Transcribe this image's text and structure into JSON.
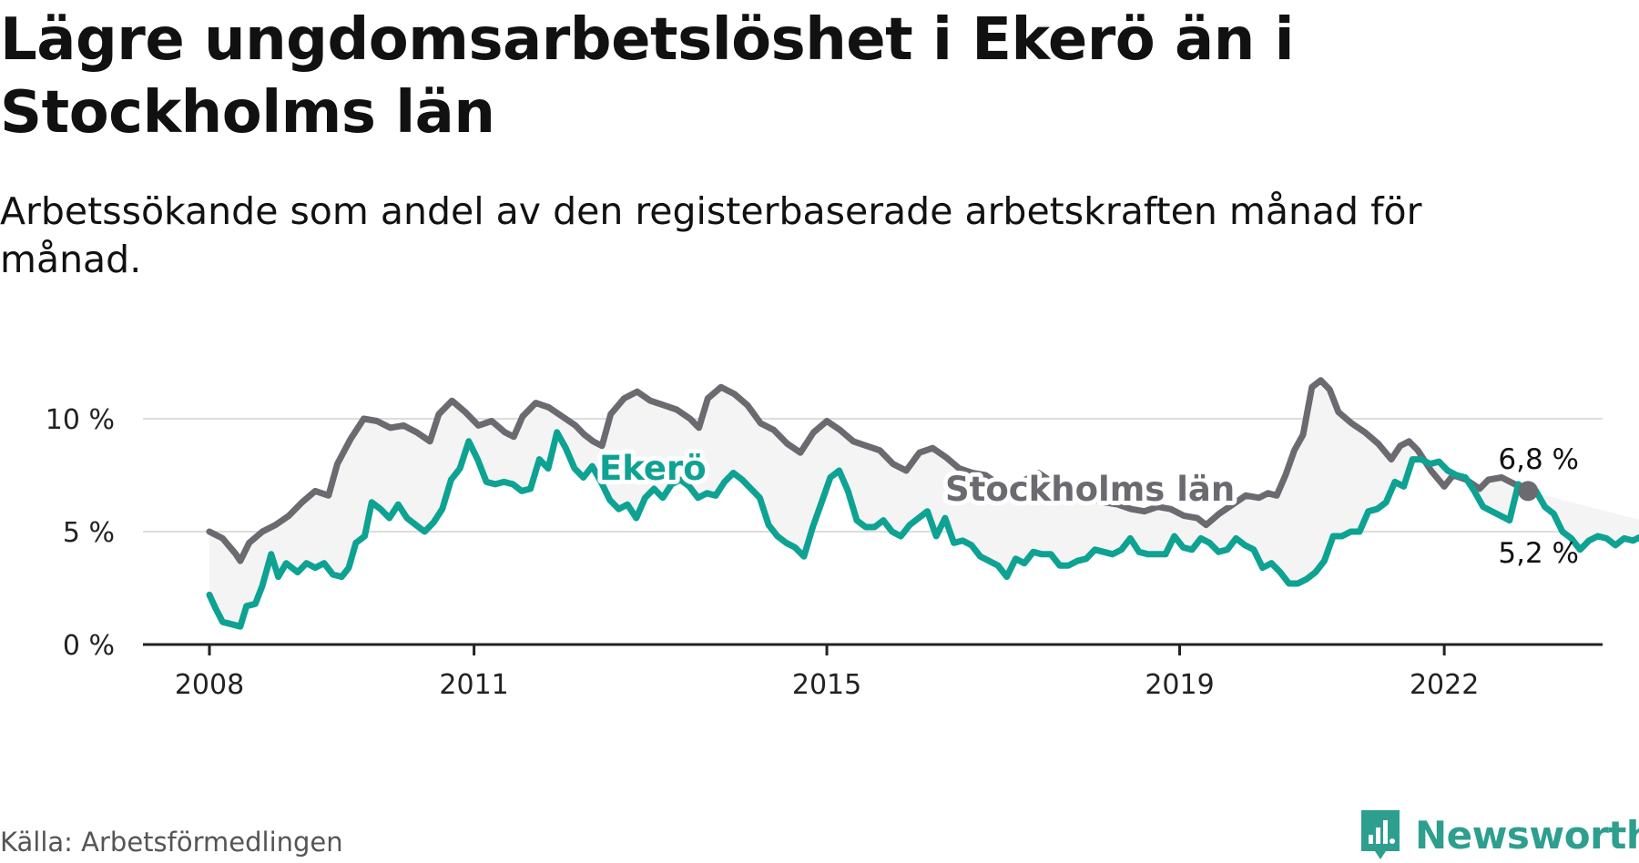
{
  "title": "Lägre ungdomsarbetslöshet i Ekerö än i Stockholms län",
  "subtitle": "Arbetssökande som andel av den registerbaserade arbetskraften månad för månad.",
  "source": "Källa: Arbetsförmedlingen",
  "brand": "Newsworthy",
  "colors": {
    "stockholm": "#6b6a70",
    "ekero": "#0ea293",
    "band": "#f4f4f4",
    "grid": "#dddddd",
    "axis": "#222222",
    "brand": "#2e9f8f"
  },
  "chart_data": {
    "type": "line",
    "title": "Lägre ungdomsarbetslöshet i Ekerö än i Stockholms län",
    "xlabel": "",
    "ylabel": "",
    "xlim": [
      2008.0,
      2023.0
    ],
    "ylim": [
      0,
      12
    ],
    "yticks": [
      0,
      5,
      10
    ],
    "ytick_labels": [
      "0 %",
      "5 %",
      "10 %"
    ],
    "xticks": [
      2008,
      2011,
      2015,
      2019,
      2022
    ],
    "xtick_labels": [
      "2008",
      "2011",
      "2015",
      "2019",
      "2022"
    ],
    "grid": true,
    "series": [
      {
        "name": "Stockholms län",
        "label": "Stockholms län",
        "end_label": "6,8 %",
        "points": [
          [
            2008.0,
            5.0
          ],
          [
            2008.15,
            4.7
          ],
          [
            2008.3,
            4.0
          ],
          [
            2008.35,
            3.7
          ],
          [
            2008.45,
            4.5
          ],
          [
            2008.6,
            5.0
          ],
          [
            2008.75,
            5.3
          ],
          [
            2008.9,
            5.7
          ],
          [
            2009.05,
            6.3
          ],
          [
            2009.2,
            6.8
          ],
          [
            2009.35,
            6.6
          ],
          [
            2009.45,
            8.0
          ],
          [
            2009.6,
            9.1
          ],
          [
            2009.75,
            10.0
          ],
          [
            2009.9,
            9.9
          ],
          [
            2010.05,
            9.6
          ],
          [
            2010.2,
            9.7
          ],
          [
            2010.35,
            9.4
          ],
          [
            2010.5,
            9.0
          ],
          [
            2010.6,
            10.2
          ],
          [
            2010.75,
            10.8
          ],
          [
            2010.9,
            10.3
          ],
          [
            2011.05,
            9.7
          ],
          [
            2011.2,
            9.9
          ],
          [
            2011.35,
            9.4
          ],
          [
            2011.45,
            9.2
          ],
          [
            2011.55,
            10.1
          ],
          [
            2011.7,
            10.7
          ],
          [
            2011.85,
            10.5
          ],
          [
            2012.0,
            10.1
          ],
          [
            2012.15,
            9.7
          ],
          [
            2012.25,
            9.3
          ],
          [
            2012.35,
            9.0
          ],
          [
            2012.45,
            8.8
          ],
          [
            2012.55,
            10.2
          ],
          [
            2012.7,
            10.9
          ],
          [
            2012.85,
            11.2
          ],
          [
            2013.0,
            10.8
          ],
          [
            2013.15,
            10.6
          ],
          [
            2013.3,
            10.4
          ],
          [
            2013.45,
            10.0
          ],
          [
            2013.55,
            9.6
          ],
          [
            2013.65,
            10.9
          ],
          [
            2013.8,
            11.4
          ],
          [
            2013.95,
            11.1
          ],
          [
            2014.1,
            10.6
          ],
          [
            2014.25,
            9.8
          ],
          [
            2014.4,
            9.5
          ],
          [
            2014.55,
            8.9
          ],
          [
            2014.7,
            8.5
          ],
          [
            2014.85,
            9.4
          ],
          [
            2015.0,
            9.9
          ],
          [
            2015.15,
            9.5
          ],
          [
            2015.3,
            9.0
          ],
          [
            2015.45,
            8.8
          ],
          [
            2015.6,
            8.6
          ],
          [
            2015.75,
            8.0
          ],
          [
            2015.9,
            7.7
          ],
          [
            2016.05,
            8.5
          ],
          [
            2016.2,
            8.7
          ],
          [
            2016.35,
            8.3
          ],
          [
            2016.5,
            7.8
          ],
          [
            2016.65,
            7.6
          ],
          [
            2016.8,
            7.5
          ],
          [
            2016.95,
            7.1
          ],
          [
            2017.1,
            6.9
          ],
          [
            2017.25,
            7.3
          ],
          [
            2017.4,
            7.6
          ],
          [
            2017.55,
            7.2
          ],
          [
            2017.7,
            6.9
          ],
          [
            2017.85,
            6.7
          ],
          [
            2018.0,
            6.5
          ],
          [
            2018.15,
            6.3
          ],
          [
            2018.3,
            6.2
          ],
          [
            2018.45,
            6.0
          ],
          [
            2018.6,
            5.9
          ],
          [
            2018.75,
            6.1
          ],
          [
            2018.9,
            6.0
          ],
          [
            2019.05,
            5.7
          ],
          [
            2019.2,
            5.6
          ],
          [
            2019.3,
            5.3
          ],
          [
            2019.45,
            5.8
          ],
          [
            2019.6,
            6.2
          ],
          [
            2019.75,
            6.6
          ],
          [
            2019.9,
            6.5
          ],
          [
            2020.0,
            6.7
          ],
          [
            2020.1,
            6.6
          ],
          [
            2020.2,
            7.5
          ],
          [
            2020.3,
            8.6
          ],
          [
            2020.4,
            9.3
          ],
          [
            2020.5,
            11.4
          ],
          [
            2020.6,
            11.7
          ],
          [
            2020.7,
            11.3
          ],
          [
            2020.8,
            10.3
          ],
          [
            2020.95,
            9.8
          ],
          [
            2021.1,
            9.4
          ],
          [
            2021.25,
            8.9
          ],
          [
            2021.4,
            8.2
          ],
          [
            2021.5,
            8.8
          ],
          [
            2021.6,
            9.0
          ],
          [
            2021.7,
            8.6
          ],
          [
            2021.85,
            7.7
          ],
          [
            2022.0,
            7.0
          ],
          [
            2022.1,
            7.5
          ],
          [
            2022.25,
            7.3
          ],
          [
            2022.4,
            6.9
          ],
          [
            2022.5,
            7.3
          ],
          [
            2022.65,
            7.4
          ],
          [
            2022.8,
            7.1
          ],
          [
            2022.95,
            6.8
          ]
        ]
      },
      {
        "name": "Ekerö",
        "label": "Ekerö",
        "end_label": "5,2 %",
        "points": [
          [
            2008.0,
            2.2
          ],
          [
            2008.07,
            1.6
          ],
          [
            2008.15,
            1.0
          ],
          [
            2008.25,
            0.9
          ],
          [
            2008.35,
            0.8
          ],
          [
            2008.42,
            1.7
          ],
          [
            2008.52,
            1.8
          ],
          [
            2008.6,
            2.6
          ],
          [
            2008.7,
            4.0
          ],
          [
            2008.78,
            3.0
          ],
          [
            2008.87,
            3.6
          ],
          [
            2009.0,
            3.2
          ],
          [
            2009.1,
            3.6
          ],
          [
            2009.2,
            3.4
          ],
          [
            2009.3,
            3.6
          ],
          [
            2009.4,
            3.1
          ],
          [
            2009.5,
            3.0
          ],
          [
            2009.58,
            3.4
          ],
          [
            2009.66,
            4.5
          ],
          [
            2009.76,
            4.8
          ],
          [
            2009.84,
            6.3
          ],
          [
            2009.94,
            6.0
          ],
          [
            2010.04,
            5.6
          ],
          [
            2010.14,
            6.2
          ],
          [
            2010.24,
            5.6
          ],
          [
            2010.34,
            5.3
          ],
          [
            2010.44,
            5.0
          ],
          [
            2010.54,
            5.4
          ],
          [
            2010.64,
            6.0
          ],
          [
            2010.74,
            7.3
          ],
          [
            2010.84,
            7.8
          ],
          [
            2010.94,
            9.0
          ],
          [
            2011.04,
            8.2
          ],
          [
            2011.14,
            7.2
          ],
          [
            2011.24,
            7.1
          ],
          [
            2011.34,
            7.2
          ],
          [
            2011.44,
            7.1
          ],
          [
            2011.54,
            6.8
          ],
          [
            2011.64,
            6.9
          ],
          [
            2011.74,
            8.2
          ],
          [
            2011.84,
            7.8
          ],
          [
            2011.94,
            9.4
          ],
          [
            2012.04,
            8.7
          ],
          [
            2012.14,
            7.8
          ],
          [
            2012.24,
            7.4
          ],
          [
            2012.34,
            7.9
          ],
          [
            2012.44,
            7.2
          ],
          [
            2012.54,
            6.4
          ],
          [
            2012.64,
            6.0
          ],
          [
            2012.74,
            6.2
          ],
          [
            2012.84,
            5.6
          ],
          [
            2012.94,
            6.5
          ],
          [
            2013.04,
            6.9
          ],
          [
            2013.14,
            6.5
          ],
          [
            2013.24,
            7.1
          ],
          [
            2013.34,
            7.3
          ],
          [
            2013.44,
            7.0
          ],
          [
            2013.54,
            6.5
          ],
          [
            2013.64,
            6.7
          ],
          [
            2013.74,
            6.6
          ],
          [
            2013.84,
            7.2
          ],
          [
            2013.94,
            7.6
          ],
          [
            2014.04,
            7.3
          ],
          [
            2014.14,
            6.9
          ],
          [
            2014.24,
            6.5
          ],
          [
            2014.34,
            5.3
          ],
          [
            2014.44,
            4.8
          ],
          [
            2014.54,
            4.5
          ],
          [
            2014.64,
            4.3
          ],
          [
            2014.74,
            3.9
          ],
          [
            2014.84,
            5.2
          ],
          [
            2014.94,
            6.3
          ],
          [
            2015.04,
            7.4
          ],
          [
            2015.14,
            7.7
          ],
          [
            2015.24,
            6.8
          ],
          [
            2015.34,
            5.5
          ],
          [
            2015.44,
            5.2
          ],
          [
            2015.54,
            5.2
          ],
          [
            2015.64,
            5.5
          ],
          [
            2015.74,
            5.0
          ],
          [
            2015.84,
            4.8
          ],
          [
            2015.94,
            5.3
          ],
          [
            2016.04,
            5.6
          ],
          [
            2016.14,
            5.9
          ],
          [
            2016.24,
            4.8
          ],
          [
            2016.34,
            5.6
          ],
          [
            2016.44,
            4.5
          ],
          [
            2016.54,
            4.6
          ],
          [
            2016.64,
            4.4
          ],
          [
            2016.74,
            3.9
          ],
          [
            2016.84,
            3.7
          ],
          [
            2016.94,
            3.5
          ],
          [
            2017.04,
            3.0
          ],
          [
            2017.14,
            3.8
          ],
          [
            2017.24,
            3.6
          ],
          [
            2017.34,
            4.1
          ],
          [
            2017.44,
            4.0
          ],
          [
            2017.54,
            4.0
          ],
          [
            2017.64,
            3.5
          ],
          [
            2017.74,
            3.5
          ],
          [
            2017.84,
            3.7
          ],
          [
            2017.94,
            3.8
          ],
          [
            2018.04,
            4.2
          ],
          [
            2018.14,
            4.1
          ],
          [
            2018.24,
            4.0
          ],
          [
            2018.34,
            4.2
          ],
          [
            2018.44,
            4.7
          ],
          [
            2018.54,
            4.1
          ],
          [
            2018.64,
            4.0
          ],
          [
            2018.74,
            4.0
          ],
          [
            2018.84,
            4.0
          ],
          [
            2018.94,
            4.8
          ],
          [
            2019.04,
            4.3
          ],
          [
            2019.14,
            4.2
          ],
          [
            2019.24,
            4.7
          ],
          [
            2019.34,
            4.5
          ],
          [
            2019.44,
            4.1
          ],
          [
            2019.54,
            4.2
          ],
          [
            2019.64,
            4.7
          ],
          [
            2019.74,
            4.4
          ],
          [
            2019.84,
            4.2
          ],
          [
            2019.94,
            3.4
          ],
          [
            2020.04,
            3.6
          ],
          [
            2020.14,
            3.2
          ],
          [
            2020.24,
            2.7
          ],
          [
            2020.34,
            2.7
          ],
          [
            2020.44,
            2.9
          ],
          [
            2020.54,
            3.2
          ],
          [
            2020.64,
            3.7
          ],
          [
            2020.74,
            4.8
          ],
          [
            2020.84,
            4.8
          ],
          [
            2020.94,
            5.0
          ],
          [
            2021.04,
            5.0
          ],
          [
            2021.14,
            5.9
          ],
          [
            2021.24,
            6.0
          ],
          [
            2021.34,
            6.3
          ],
          [
            2021.44,
            7.2
          ],
          [
            2021.54,
            7.0
          ],
          [
            2021.64,
            8.2
          ],
          [
            2021.74,
            8.2
          ],
          [
            2021.84,
            8.0
          ],
          [
            2021.94,
            8.1
          ],
          [
            2022.04,
            7.7
          ],
          [
            2022.14,
            7.5
          ],
          [
            2022.24,
            7.4
          ],
          [
            2022.34,
            6.8
          ],
          [
            2022.44,
            6.1
          ],
          [
            2022.54,
            5.9
          ],
          [
            2022.64,
            5.7
          ],
          [
            2022.74,
            5.5
          ],
          [
            2022.84,
            7.1
          ],
          [
            2022.94,
            6.8
          ],
          [
            2023.04,
            6.8
          ],
          [
            2023.14,
            6.1
          ],
          [
            2023.24,
            5.8
          ],
          [
            2023.34,
            5.0
          ],
          [
            2023.44,
            4.7
          ],
          [
            2023.54,
            4.2
          ],
          [
            2023.64,
            4.6
          ],
          [
            2023.74,
            4.8
          ],
          [
            2023.84,
            4.7
          ],
          [
            2023.94,
            4.4
          ],
          [
            2024.04,
            4.7
          ],
          [
            2024.14,
            4.6
          ],
          [
            2024.24,
            4.8
          ],
          [
            2024.34,
            4.8
          ],
          [
            2024.44,
            5.0
          ],
          [
            2024.54,
            5.2
          ]
        ]
      }
    ]
  }
}
